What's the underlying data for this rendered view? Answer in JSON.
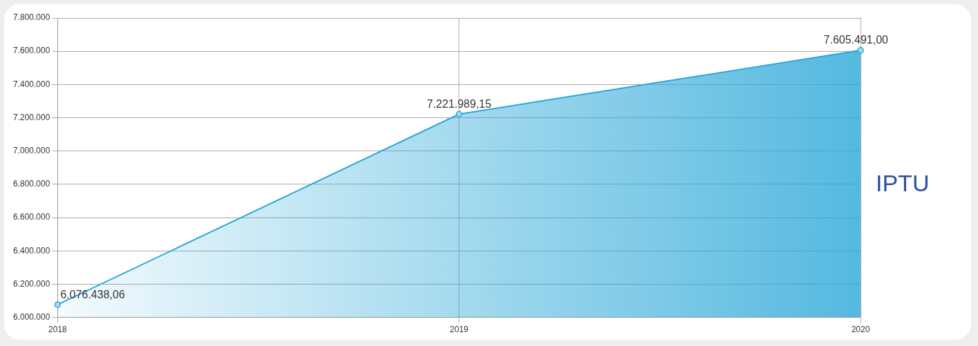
{
  "chart_data": {
    "type": "area",
    "categories": [
      "2018",
      "2019",
      "2020"
    ],
    "series": [
      {
        "color": "#2aa7d8",
        "values": [
          6076438.06,
          7221989.15,
          7605491.0
        ],
        "value_labels": [
          "6.076.438,06",
          "7.221.989,15",
          "7.605.491,00"
        ]
      }
    ],
    "ylim": [
      6000000,
      7800000
    ],
    "yticks": [
      {
        "value": 6000000,
        "label": "6.000.000"
      },
      {
        "value": 6200000,
        "label": "6.200.000"
      },
      {
        "value": 6400000,
        "label": "6.400.000"
      },
      {
        "value": 6600000,
        "label": "6.600.000"
      },
      {
        "value": 6800000,
        "label": "6.800.000"
      },
      {
        "value": 7000000,
        "label": "7.000.000"
      },
      {
        "value": 7200000,
        "label": "7.200.000"
      },
      {
        "value": 7400000,
        "label": "7.400.000"
      },
      {
        "value": 7600000,
        "label": "7.600.000"
      },
      {
        "value": 7800000,
        "label": "7.800.000"
      }
    ],
    "grid": true,
    "legend": false,
    "marker": "circle",
    "line_style": "solid",
    "annotations": [
      "IPTU"
    ]
  }
}
